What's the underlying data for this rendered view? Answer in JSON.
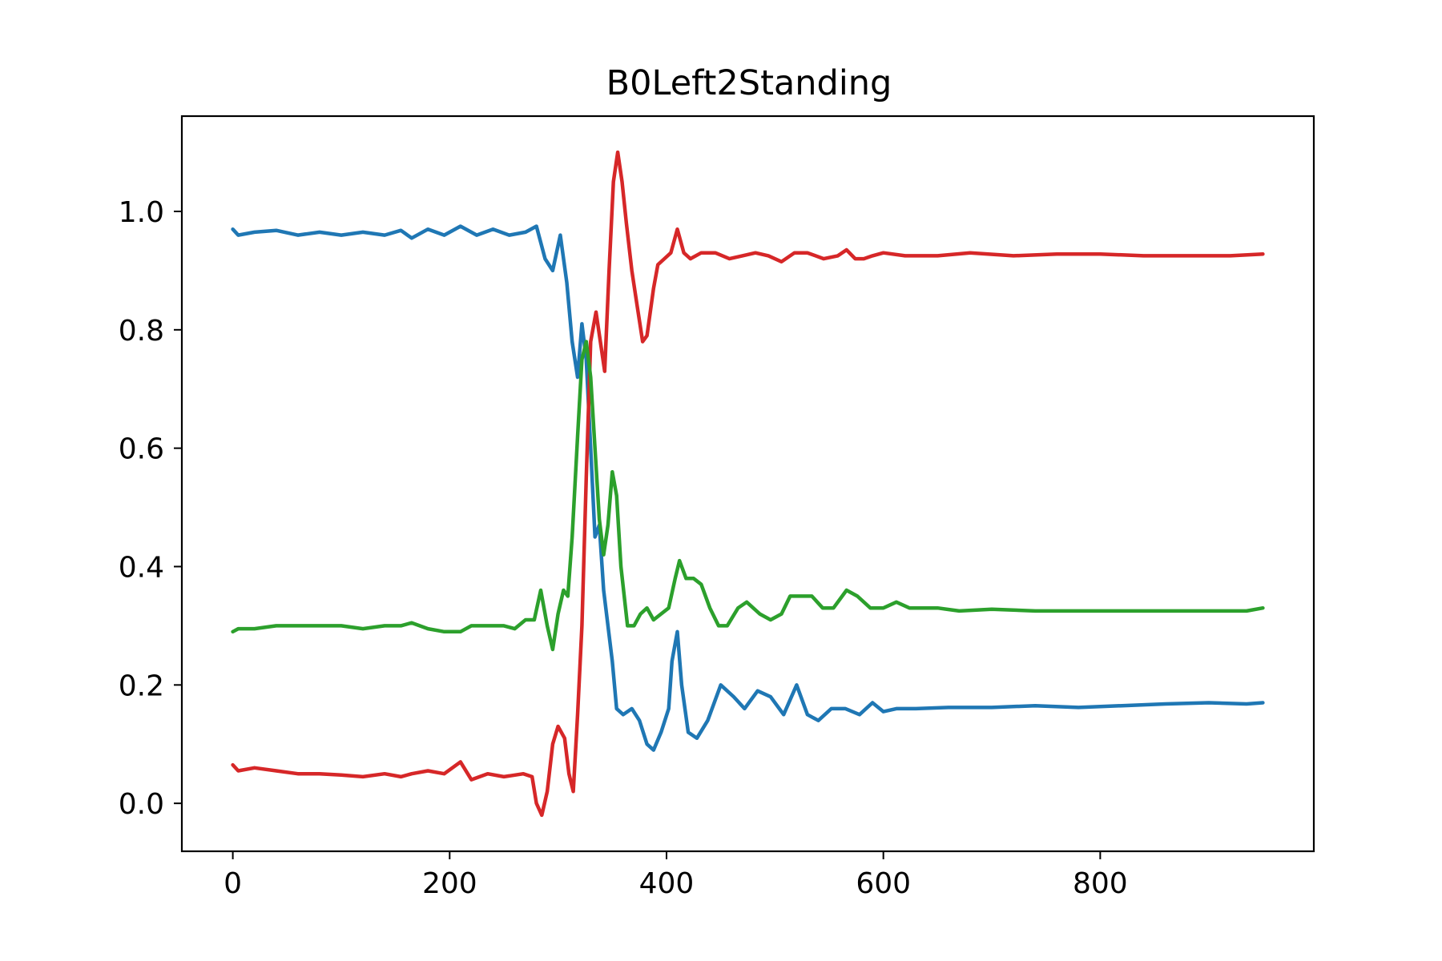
{
  "chart_data": {
    "type": "line",
    "title": "B0Left2Standing",
    "xlabel": "",
    "ylabel": "",
    "xlim": [
      -47,
      997
    ],
    "ylim": [
      -0.081,
      1.161
    ],
    "x_ticks": [
      0,
      200,
      400,
      600,
      800
    ],
    "x_tick_labels": [
      "0",
      "200",
      "400",
      "600",
      "800"
    ],
    "y_ticks": [
      0.0,
      0.2,
      0.4,
      0.6,
      0.8,
      1.0
    ],
    "y_tick_labels": [
      "0.0",
      "0.2",
      "0.4",
      "0.6",
      "0.8",
      "1.0"
    ],
    "grid": false,
    "legend": "none",
    "series": [
      {
        "color": "#1f77b4",
        "points": [
          [
            0,
            0.97
          ],
          [
            5,
            0.96
          ],
          [
            20,
            0.965
          ],
          [
            40,
            0.968
          ],
          [
            60,
            0.96
          ],
          [
            80,
            0.965
          ],
          [
            100,
            0.96
          ],
          [
            120,
            0.965
          ],
          [
            140,
            0.96
          ],
          [
            155,
            0.968
          ],
          [
            165,
            0.955
          ],
          [
            180,
            0.97
          ],
          [
            195,
            0.96
          ],
          [
            210,
            0.975
          ],
          [
            225,
            0.96
          ],
          [
            240,
            0.97
          ],
          [
            255,
            0.96
          ],
          [
            270,
            0.965
          ],
          [
            280,
            0.975
          ],
          [
            288,
            0.92
          ],
          [
            295,
            0.9
          ],
          [
            302,
            0.96
          ],
          [
            308,
            0.88
          ],
          [
            313,
            0.78
          ],
          [
            318,
            0.72
          ],
          [
            322,
            0.81
          ],
          [
            326,
            0.75
          ],
          [
            330,
            0.6
          ],
          [
            334,
            0.45
          ],
          [
            338,
            0.47
          ],
          [
            342,
            0.36
          ],
          [
            346,
            0.3
          ],
          [
            350,
            0.24
          ],
          [
            354,
            0.16
          ],
          [
            360,
            0.15
          ],
          [
            368,
            0.16
          ],
          [
            375,
            0.14
          ],
          [
            382,
            0.1
          ],
          [
            388,
            0.09
          ],
          [
            395,
            0.12
          ],
          [
            402,
            0.16
          ],
          [
            405,
            0.24
          ],
          [
            410,
            0.29
          ],
          [
            414,
            0.2
          ],
          [
            420,
            0.12
          ],
          [
            428,
            0.11
          ],
          [
            438,
            0.14
          ],
          [
            450,
            0.2
          ],
          [
            462,
            0.18
          ],
          [
            472,
            0.16
          ],
          [
            484,
            0.19
          ],
          [
            496,
            0.18
          ],
          [
            508,
            0.15
          ],
          [
            520,
            0.2
          ],
          [
            530,
            0.15
          ],
          [
            540,
            0.14
          ],
          [
            552,
            0.16
          ],
          [
            565,
            0.16
          ],
          [
            578,
            0.15
          ],
          [
            590,
            0.17
          ],
          [
            600,
            0.155
          ],
          [
            612,
            0.16
          ],
          [
            630,
            0.16
          ],
          [
            660,
            0.162
          ],
          [
            700,
            0.162
          ],
          [
            740,
            0.165
          ],
          [
            780,
            0.162
          ],
          [
            820,
            0.165
          ],
          [
            860,
            0.168
          ],
          [
            900,
            0.17
          ],
          [
            935,
            0.168
          ],
          [
            950,
            0.17
          ]
        ]
      },
      {
        "color": "#d62728",
        "points": [
          [
            0,
            0.065
          ],
          [
            5,
            0.055
          ],
          [
            20,
            0.06
          ],
          [
            40,
            0.055
          ],
          [
            60,
            0.05
          ],
          [
            80,
            0.05
          ],
          [
            100,
            0.048
          ],
          [
            120,
            0.045
          ],
          [
            140,
            0.05
          ],
          [
            155,
            0.045
          ],
          [
            165,
            0.05
          ],
          [
            180,
            0.055
          ],
          [
            195,
            0.05
          ],
          [
            210,
            0.07
          ],
          [
            220,
            0.04
          ],
          [
            235,
            0.05
          ],
          [
            250,
            0.045
          ],
          [
            268,
            0.05
          ],
          [
            276,
            0.045
          ],
          [
            280,
            0.0
          ],
          [
            285,
            -0.02
          ],
          [
            290,
            0.02
          ],
          [
            295,
            0.1
          ],
          [
            300,
            0.13
          ],
          [
            306,
            0.11
          ],
          [
            310,
            0.05
          ],
          [
            314,
            0.02
          ],
          [
            318,
            0.15
          ],
          [
            322,
            0.3
          ],
          [
            326,
            0.55
          ],
          [
            330,
            0.78
          ],
          [
            335,
            0.83
          ],
          [
            339,
            0.78
          ],
          [
            343,
            0.73
          ],
          [
            347,
            0.9
          ],
          [
            351,
            1.05
          ],
          [
            355,
            1.1
          ],
          [
            359,
            1.05
          ],
          [
            363,
            0.98
          ],
          [
            368,
            0.9
          ],
          [
            373,
            0.84
          ],
          [
            378,
            0.78
          ],
          [
            382,
            0.79
          ],
          [
            388,
            0.87
          ],
          [
            392,
            0.91
          ],
          [
            398,
            0.92
          ],
          [
            404,
            0.93
          ],
          [
            410,
            0.97
          ],
          [
            416,
            0.93
          ],
          [
            422,
            0.92
          ],
          [
            432,
            0.93
          ],
          [
            445,
            0.93
          ],
          [
            458,
            0.92
          ],
          [
            470,
            0.925
          ],
          [
            482,
            0.93
          ],
          [
            494,
            0.925
          ],
          [
            506,
            0.915
          ],
          [
            518,
            0.93
          ],
          [
            530,
            0.93
          ],
          [
            545,
            0.92
          ],
          [
            558,
            0.925
          ],
          [
            566,
            0.935
          ],
          [
            574,
            0.92
          ],
          [
            582,
            0.92
          ],
          [
            590,
            0.925
          ],
          [
            600,
            0.93
          ],
          [
            620,
            0.925
          ],
          [
            650,
            0.925
          ],
          [
            680,
            0.93
          ],
          [
            720,
            0.925
          ],
          [
            760,
            0.928
          ],
          [
            800,
            0.928
          ],
          [
            840,
            0.925
          ],
          [
            880,
            0.925
          ],
          [
            920,
            0.925
          ],
          [
            950,
            0.928
          ]
        ]
      },
      {
        "color": "#2ca02c",
        "points": [
          [
            0,
            0.29
          ],
          [
            5,
            0.295
          ],
          [
            20,
            0.295
          ],
          [
            40,
            0.3
          ],
          [
            60,
            0.3
          ],
          [
            80,
            0.3
          ],
          [
            100,
            0.3
          ],
          [
            120,
            0.295
          ],
          [
            140,
            0.3
          ],
          [
            155,
            0.3
          ],
          [
            165,
            0.305
          ],
          [
            180,
            0.295
          ],
          [
            195,
            0.29
          ],
          [
            210,
            0.29
          ],
          [
            220,
            0.3
          ],
          [
            235,
            0.3
          ],
          [
            250,
            0.3
          ],
          [
            260,
            0.295
          ],
          [
            270,
            0.31
          ],
          [
            278,
            0.31
          ],
          [
            284,
            0.36
          ],
          [
            290,
            0.3
          ],
          [
            295,
            0.26
          ],
          [
            300,
            0.32
          ],
          [
            305,
            0.36
          ],
          [
            309,
            0.35
          ],
          [
            313,
            0.45
          ],
          [
            318,
            0.62
          ],
          [
            322,
            0.75
          ],
          [
            326,
            0.78
          ],
          [
            330,
            0.72
          ],
          [
            334,
            0.6
          ],
          [
            338,
            0.48
          ],
          [
            342,
            0.42
          ],
          [
            346,
            0.47
          ],
          [
            350,
            0.56
          ],
          [
            354,
            0.52
          ],
          [
            358,
            0.4
          ],
          [
            364,
            0.3
          ],
          [
            370,
            0.3
          ],
          [
            376,
            0.32
          ],
          [
            382,
            0.33
          ],
          [
            388,
            0.31
          ],
          [
            395,
            0.32
          ],
          [
            402,
            0.33
          ],
          [
            408,
            0.38
          ],
          [
            412,
            0.41
          ],
          [
            418,
            0.38
          ],
          [
            425,
            0.38
          ],
          [
            432,
            0.37
          ],
          [
            440,
            0.33
          ],
          [
            448,
            0.3
          ],
          [
            456,
            0.3
          ],
          [
            466,
            0.33
          ],
          [
            474,
            0.34
          ],
          [
            486,
            0.32
          ],
          [
            496,
            0.31
          ],
          [
            506,
            0.32
          ],
          [
            514,
            0.35
          ],
          [
            524,
            0.35
          ],
          [
            534,
            0.35
          ],
          [
            544,
            0.33
          ],
          [
            554,
            0.33
          ],
          [
            566,
            0.36
          ],
          [
            576,
            0.35
          ],
          [
            588,
            0.33
          ],
          [
            600,
            0.33
          ],
          [
            612,
            0.34
          ],
          [
            624,
            0.33
          ],
          [
            636,
            0.33
          ],
          [
            650,
            0.33
          ],
          [
            670,
            0.325
          ],
          [
            700,
            0.328
          ],
          [
            740,
            0.325
          ],
          [
            780,
            0.325
          ],
          [
            820,
            0.325
          ],
          [
            860,
            0.325
          ],
          [
            900,
            0.325
          ],
          [
            935,
            0.325
          ],
          [
            950,
            0.33
          ]
        ]
      }
    ]
  }
}
